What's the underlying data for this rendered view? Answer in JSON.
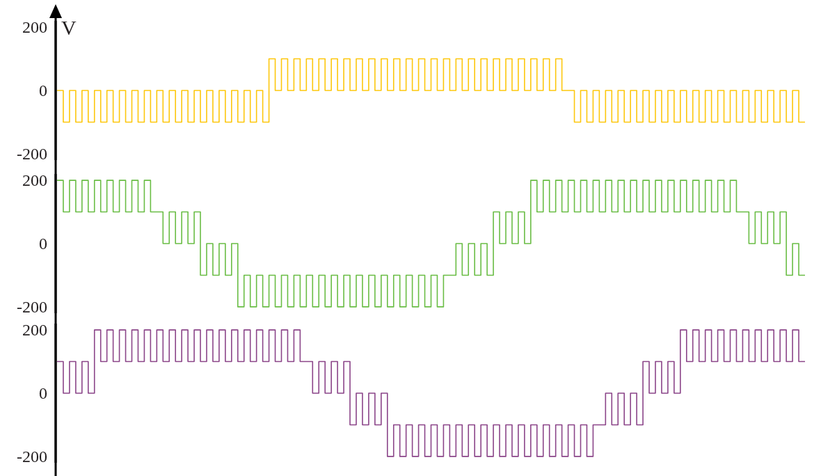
{
  "chart_data": [
    {
      "type": "step",
      "ylabel": "V",
      "tick_labels": "y",
      "ylim": [
        -220,
        220
      ],
      "yticks": [
        -200,
        0,
        200
      ],
      "categories": [
        null,
        null,
        null,
        null,
        null,
        null,
        null,
        null,
        null,
        null,
        null,
        null,
        null,
        null,
        null,
        null,
        null,
        null,
        null,
        null,
        null,
        null,
        null,
        null,
        null,
        null,
        null,
        null,
        null,
        null,
        null,
        null,
        null,
        null,
        null,
        null,
        null,
        null,
        null,
        null,
        null,
        null,
        null,
        null,
        null,
        null,
        null,
        null,
        null,
        null,
        null,
        null,
        null,
        null,
        null,
        null,
        null,
        null,
        null,
        null,
        null,
        null,
        null,
        null,
        null,
        null,
        null,
        null,
        null,
        null,
        null,
        null,
        null,
        null,
        null,
        null,
        null,
        null,
        null,
        null,
        null,
        null,
        null,
        null,
        null,
        null,
        null,
        null,
        null,
        null,
        null,
        null,
        null,
        null,
        null,
        null,
        null,
        null,
        null,
        null,
        null,
        null,
        null,
        null,
        null,
        null,
        null,
        null,
        null,
        null,
        null,
        null,
        null,
        null,
        null,
        null,
        null,
        null,
        null,
        null
      ],
      "series": [
        {
          "color": "#fdc70c",
          "values": [
            0,
            -100,
            0,
            -100,
            0,
            -100,
            0,
            -100,
            0,
            -100,
            0,
            -100,
            0,
            -100,
            0,
            -100,
            0,
            -100,
            0,
            -100,
            0,
            -100,
            0,
            -100,
            0,
            -100,
            0,
            -100,
            0,
            -100,
            0,
            -100,
            0,
            -100,
            100,
            0,
            100,
            0,
            100,
            0,
            100,
            0,
            100,
            0,
            100,
            0,
            100,
            0,
            100,
            0,
            100,
            0,
            100,
            0,
            100,
            0,
            100,
            0,
            100,
            0,
            100,
            0,
            100,
            0,
            100,
            0,
            100,
            0,
            100,
            0,
            100,
            0,
            100,
            0,
            100,
            0,
            100,
            0,
            100,
            0,
            100,
            0,
            0,
            -100,
            0,
            -100,
            0,
            -100,
            0,
            -100,
            0,
            -100,
            0,
            -100,
            0,
            -100,
            0,
            -100,
            0,
            -100,
            0,
            -100,
            0,
            -100,
            0,
            -100,
            0,
            -100,
            0,
            -100,
            0,
            -100,
            0,
            -100,
            0,
            -100,
            0,
            -100,
            0,
            -100
          ]
        }
      ]
    },
    {
      "type": "step",
      "tick_labels": "y",
      "ylim": [
        -220,
        220
      ],
      "yticks": [
        -200,
        0,
        200
      ],
      "categories": [
        null,
        null,
        null,
        null,
        null,
        null,
        null,
        null,
        null,
        null,
        null,
        null,
        null,
        null,
        null,
        null,
        null,
        null,
        null,
        null,
        null,
        null,
        null,
        null,
        null,
        null,
        null,
        null,
        null,
        null,
        null,
        null,
        null,
        null,
        null,
        null,
        null,
        null,
        null,
        null,
        null,
        null,
        null,
        null,
        null,
        null,
        null,
        null,
        null,
        null,
        null,
        null,
        null,
        null,
        null,
        null,
        null,
        null,
        null,
        null,
        null,
        null,
        null,
        null,
        null,
        null,
        null,
        null,
        null,
        null,
        null,
        null,
        null,
        null,
        null,
        null,
        null,
        null,
        null,
        null,
        null,
        null,
        null,
        null,
        null,
        null,
        null,
        null,
        null,
        null,
        null,
        null,
        null,
        null,
        null,
        null,
        null,
        null,
        null,
        null,
        null,
        null,
        null,
        null,
        null,
        null,
        null,
        null,
        null,
        null,
        null,
        null,
        null,
        null,
        null,
        null,
        null,
        null,
        null,
        null
      ],
      "series": [
        {
          "color": "#6abd45",
          "values": [
            200,
            100,
            200,
            100,
            200,
            100,
            200,
            100,
            200,
            100,
            200,
            100,
            200,
            100,
            200,
            100,
            100,
            0,
            100,
            0,
            100,
            0,
            100,
            -100,
            0,
            -100,
            0,
            -100,
            0,
            -200,
            -100,
            -200,
            -100,
            -200,
            -100,
            -200,
            -100,
            -200,
            -100,
            -200,
            -100,
            -200,
            -100,
            -200,
            -100,
            -200,
            -100,
            -200,
            -100,
            -200,
            -100,
            -200,
            -100,
            -200,
            -100,
            -200,
            -100,
            -200,
            -100,
            -200,
            -100,
            -200,
            -100,
            -100,
            0,
            -100,
            0,
            -100,
            0,
            -100,
            100,
            0,
            100,
            0,
            100,
            0,
            200,
            100,
            200,
            100,
            200,
            100,
            200,
            100,
            200,
            100,
            200,
            100,
            200,
            100,
            200,
            100,
            200,
            100,
            200,
            100,
            200,
            100,
            200,
            100,
            200,
            100,
            200,
            100,
            200,
            100,
            200,
            100,
            200,
            100,
            100,
            0,
            100,
            0,
            100,
            0,
            100,
            -100,
            0,
            -100
          ]
        }
      ]
    },
    {
      "type": "step",
      "tick_labels": "y",
      "ylim": [
        -220,
        220
      ],
      "yticks": [
        -200,
        0,
        200
      ],
      "categories": [
        null,
        null,
        null,
        null,
        null,
        null,
        null,
        null,
        null,
        null,
        null,
        null,
        null,
        null,
        null,
        null,
        null,
        null,
        null,
        null,
        null,
        null,
        null,
        null,
        null,
        null,
        null,
        null,
        null,
        null,
        null,
        null,
        null,
        null,
        null,
        null,
        null,
        null,
        null,
        null,
        null,
        null,
        null,
        null,
        null,
        null,
        null,
        null,
        null,
        null,
        null,
        null,
        null,
        null,
        null,
        null,
        null,
        null,
        null,
        null,
        null,
        null,
        null,
        null,
        null,
        null,
        null,
        null,
        null,
        null,
        null,
        null,
        null,
        null,
        null,
        null,
        null,
        null,
        null,
        null,
        null,
        null,
        null,
        null,
        null,
        null,
        null,
        null,
        null,
        null,
        null,
        null,
        null,
        null,
        null,
        null,
        null,
        null,
        null,
        null,
        null,
        null,
        null,
        null,
        null,
        null,
        null,
        null,
        null,
        null,
        null,
        null,
        null,
        null,
        null,
        null,
        null,
        null,
        null,
        null
      ],
      "series": [
        {
          "color": "#8b4589",
          "values": [
            100,
            0,
            100,
            0,
            100,
            0,
            200,
            100,
            200,
            100,
            200,
            100,
            200,
            100,
            200,
            100,
            200,
            100,
            200,
            100,
            200,
            100,
            200,
            100,
            200,
            100,
            200,
            100,
            200,
            100,
            200,
            100,
            200,
            100,
            200,
            100,
            200,
            100,
            200,
            100,
            100,
            0,
            100,
            0,
            100,
            0,
            100,
            -100,
            0,
            -100,
            0,
            -100,
            0,
            -200,
            -100,
            -200,
            -100,
            -200,
            -100,
            -200,
            -100,
            -200,
            -100,
            -200,
            -100,
            -200,
            -100,
            -200,
            -100,
            -200,
            -100,
            -200,
            -100,
            -200,
            -100,
            -200,
            -100,
            -200,
            -100,
            -200,
            -100,
            -200,
            -100,
            -200,
            -100,
            -200,
            -100,
            -100,
            0,
            -100,
            0,
            -100,
            0,
            -100,
            100,
            0,
            100,
            0,
            100,
            0,
            200,
            100,
            200,
            100,
            200,
            100,
            200,
            100,
            200,
            100,
            200,
            100,
            200,
            100,
            200,
            100,
            200,
            100,
            200,
            100
          ]
        }
      ]
    }
  ]
}
